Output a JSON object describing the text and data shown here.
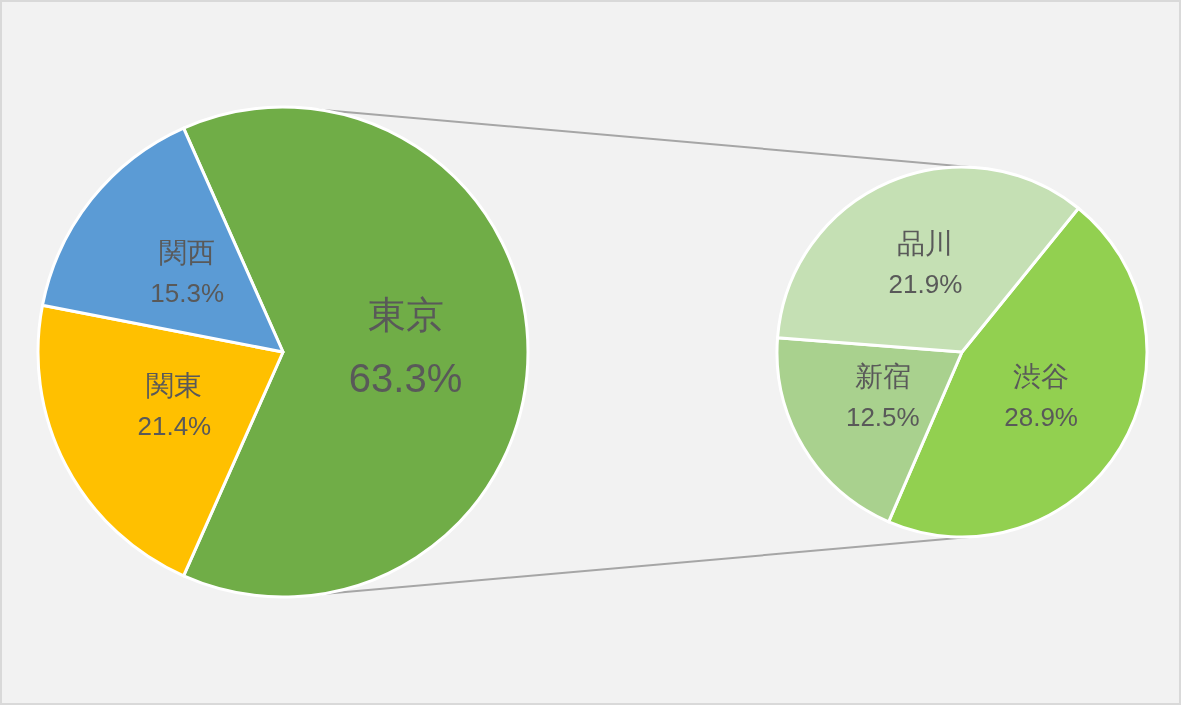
{
  "chart_data": [
    {
      "type": "pie",
      "categories": [
        "東京",
        "関東",
        "関西"
      ],
      "values": [
        63.3,
        21.4,
        15.3
      ],
      "colors": [
        "#70ad47",
        "#ffc000",
        "#5b9bd5"
      ],
      "value_labels": [
        "63.3%",
        "21.4%",
        "15.3%"
      ]
    },
    {
      "type": "pie",
      "categories": [
        "渋谷",
        "新宿",
        "品川"
      ],
      "values": [
        28.9,
        12.5,
        21.9
      ],
      "colors": [
        "#92d050",
        "#a9d18e",
        "#c5e0b4"
      ],
      "value_labels": [
        "28.9%",
        "12.5%",
        "21.9%"
      ]
    }
  ]
}
